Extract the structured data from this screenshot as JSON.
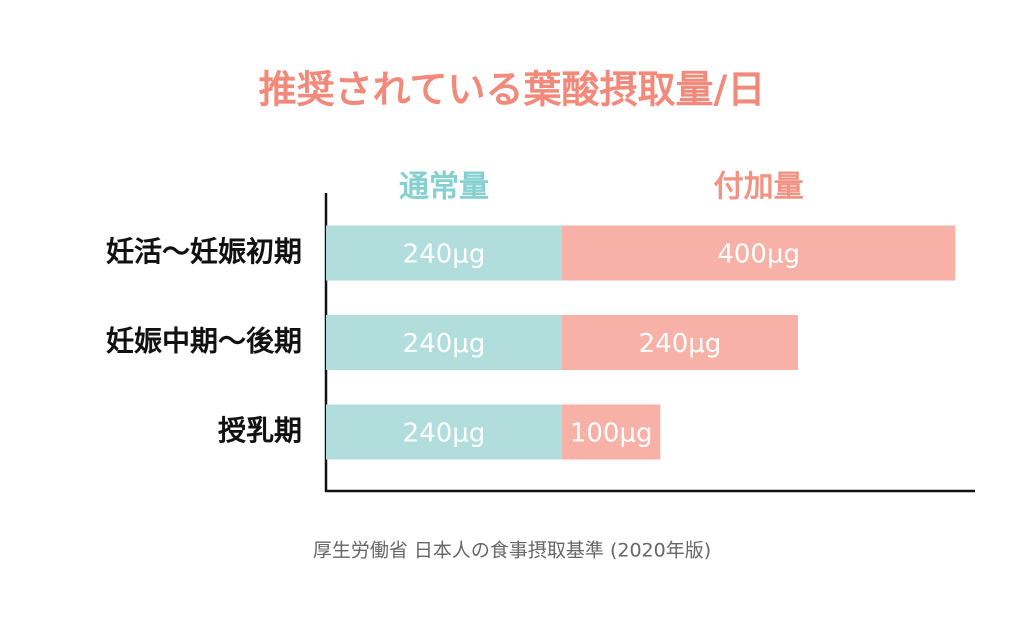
{
  "chart_data": {
    "type": "stacked-bar-horizontal",
    "title": "推奨されている葉酸摂取量/日",
    "source": "厚生労働省 日本人の食事摂取基準 (2020年版)",
    "categories": [
      "妊活〜妊娠初期",
      "妊娠中期〜後期",
      "授乳期"
    ],
    "series": [
      {
        "name": "通常量",
        "color": "#b1dedd",
        "header_color": "#86d1d0",
        "values": [
          240,
          240,
          240
        ],
        "value_labels": [
          "240μg",
          "240μg",
          "240μg"
        ]
      },
      {
        "name": "付加量",
        "color": "#f7b1a7",
        "header_color": "#f39283",
        "values": [
          400,
          240,
          100
        ],
        "value_labels": [
          "400μg",
          "240μg",
          "100μg"
        ]
      }
    ]
  }
}
